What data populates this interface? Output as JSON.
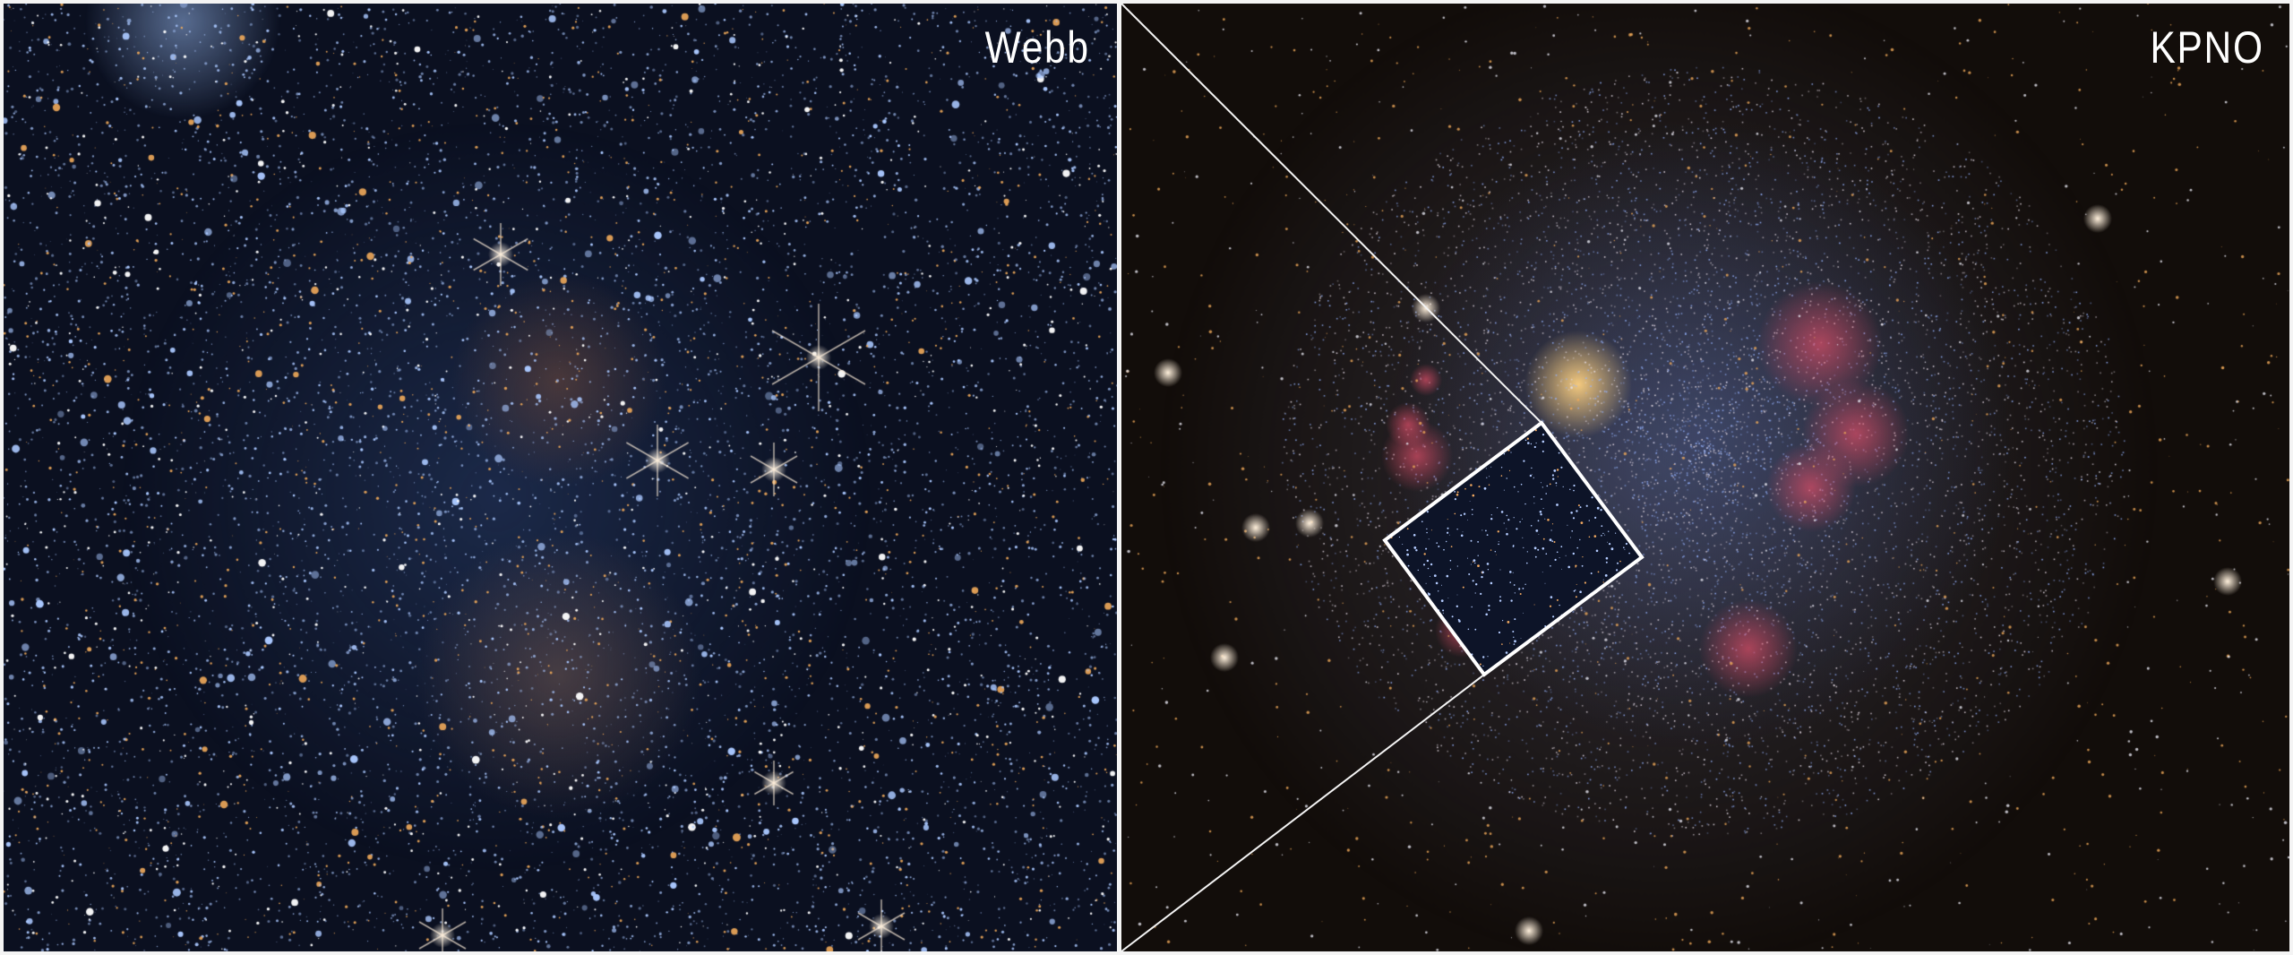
{
  "panels": {
    "left": {
      "label": "Webb"
    },
    "right": {
      "label": "KPNO"
    }
  },
  "colors": {
    "frame": "#f4f4f4",
    "webb_background": "#0b1020",
    "kpno_background": "#120d0a",
    "hydrogen_regions": "#e0506a"
  }
}
